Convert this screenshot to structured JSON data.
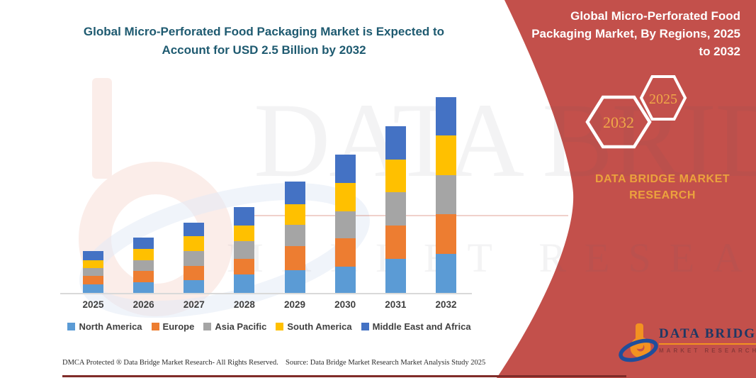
{
  "title": {
    "line1": "Global Micro-Perforated Food Packaging Market is Expected to",
    "line2": "Account for USD 2.5 Billion by 2032",
    "color": "#1E5A70"
  },
  "banner": {
    "color": "#C3504B",
    "heading_lines": [
      "Global Micro-Perforated Food",
      "Packaging Market, By Regions, 2025",
      "to 2032"
    ],
    "hexagon_back_label": "2032",
    "hexagon_front_label": "2025",
    "hexagon_text_color": "#F0A848",
    "brand_line1": "DATA BRIDGE MARKET",
    "brand_line2": "RESEARCH",
    "brand_color": "#EBA23D"
  },
  "watermark": {
    "big_text": "DATA BRIDGE",
    "sub_text": "MARKET RESEARCH"
  },
  "chart_data": {
    "type": "bar",
    "stacked": true,
    "title": "Global Micro-Perforated Food Packaging Market is Expected to Account for USD 2.5 Billion by 2032",
    "unit": "USD Billion",
    "values_estimated": true,
    "categories": [
      "2025",
      "2026",
      "2027",
      "2028",
      "2029",
      "2030",
      "2031",
      "2032"
    ],
    "series": [
      {
        "name": "North America",
        "color": "#5B9BD5",
        "values": [
          0.11,
          0.14,
          0.16,
          0.24,
          0.29,
          0.34,
          0.44,
          0.5
        ]
      },
      {
        "name": "Europe",
        "color": "#ED7D31",
        "values": [
          0.11,
          0.14,
          0.19,
          0.2,
          0.31,
          0.36,
          0.42,
          0.51
        ]
      },
      {
        "name": "Asia Pacific",
        "color": "#A5A5A5",
        "values": [
          0.1,
          0.14,
          0.19,
          0.22,
          0.27,
          0.35,
          0.43,
          0.5
        ]
      },
      {
        "name": "South America",
        "color": "#FFC000",
        "values": [
          0.1,
          0.14,
          0.19,
          0.2,
          0.27,
          0.36,
          0.42,
          0.51
        ]
      },
      {
        "name": "Middle East and Africa",
        "color": "#4472C4",
        "values": [
          0.12,
          0.15,
          0.17,
          0.24,
          0.29,
          0.36,
          0.43,
          0.49
        ]
      }
    ],
    "totals": [
      0.54,
      0.71,
      0.9,
      1.1,
      1.43,
      1.77,
      2.14,
      2.51
    ],
    "ylim": [
      0,
      2.65
    ],
    "grid": false,
    "y_axis_visible": false,
    "legend_position": "bottom"
  },
  "footer": {
    "dmca": "DMCA Protected ® Data Bridge Market Research-  All Rights Reserved.",
    "source": "Source: Data Bridge Market Research  Market Analysis Study 2025"
  },
  "logo": {
    "name": "DATA BRIDGE",
    "sub": "MARKET RESEARCH"
  }
}
